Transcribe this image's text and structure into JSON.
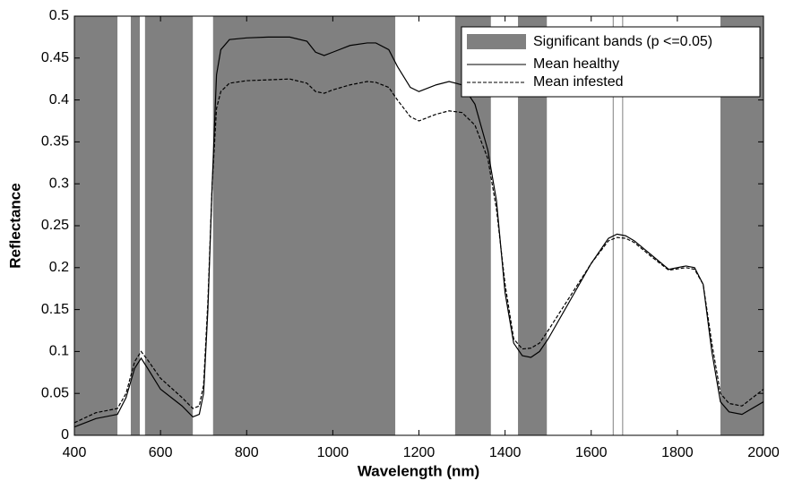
{
  "chart_data": {
    "type": "line",
    "xlabel": "Wavelength (nm)",
    "ylabel": "Reflectance",
    "xlim": [
      400,
      2000
    ],
    "ylim": [
      0,
      0.5
    ],
    "xticks": [
      400,
      600,
      800,
      1000,
      1200,
      1400,
      1600,
      1800,
      2000
    ],
    "yticks": [
      0,
      0.05,
      0.1,
      0.15,
      0.2,
      0.25,
      0.3,
      0.35,
      0.4,
      0.45,
      0.5
    ],
    "legend": "upper right",
    "bands": {
      "name": "Significant bands (p <=0.05)",
      "color": "#808080",
      "ranges": [
        {
          "start": 400,
          "end": 500
        },
        {
          "start": 531,
          "end": 552
        },
        {
          "start": 564,
          "end": 675
        },
        {
          "start": 722,
          "end": 1145
        },
        {
          "start": 1284,
          "end": 1367
        },
        {
          "start": 1430,
          "end": 1497
        },
        {
          "start": 1650,
          "end": 1652
        },
        {
          "start": 1672,
          "end": 1674
        },
        {
          "start": 1900,
          "end": 2000
        }
      ]
    },
    "x": [
      400,
      450,
      500,
      520,
      540,
      555,
      570,
      600,
      650,
      675,
      690,
      700,
      710,
      720,
      730,
      740,
      760,
      800,
      850,
      900,
      940,
      960,
      980,
      1000,
      1040,
      1080,
      1100,
      1130,
      1150,
      1180,
      1200,
      1240,
      1270,
      1300,
      1330,
      1360,
      1380,
      1400,
      1420,
      1440,
      1460,
      1480,
      1500,
      1550,
      1600,
      1640,
      1660,
      1680,
      1700,
      1740,
      1780,
      1820,
      1840,
      1860,
      1880,
      1900,
      1920,
      1950,
      2000
    ],
    "series": [
      {
        "name": "Mean healthy",
        "color": "#000000",
        "dash": "solid",
        "values": [
          0.01,
          0.02,
          0.025,
          0.045,
          0.08,
          0.092,
          0.08,
          0.055,
          0.035,
          0.022,
          0.025,
          0.05,
          0.15,
          0.3,
          0.43,
          0.46,
          0.472,
          0.474,
          0.475,
          0.475,
          0.47,
          0.457,
          0.453,
          0.457,
          0.465,
          0.468,
          0.468,
          0.46,
          0.44,
          0.415,
          0.41,
          0.418,
          0.422,
          0.418,
          0.395,
          0.34,
          0.28,
          0.17,
          0.11,
          0.095,
          0.093,
          0.1,
          0.115,
          0.16,
          0.205,
          0.235,
          0.24,
          0.238,
          0.232,
          0.215,
          0.198,
          0.202,
          0.2,
          0.18,
          0.1,
          0.04,
          0.028,
          0.025,
          0.04
        ]
      },
      {
        "name": "Mean infested",
        "color": "#000000",
        "dash": "dashed",
        "values": [
          0.015,
          0.027,
          0.032,
          0.05,
          0.088,
          0.1,
          0.09,
          0.068,
          0.045,
          0.032,
          0.035,
          0.06,
          0.16,
          0.3,
          0.39,
          0.41,
          0.42,
          0.423,
          0.424,
          0.425,
          0.42,
          0.41,
          0.408,
          0.412,
          0.418,
          0.422,
          0.421,
          0.415,
          0.4,
          0.38,
          0.375,
          0.383,
          0.387,
          0.385,
          0.37,
          0.33,
          0.27,
          0.18,
          0.115,
          0.103,
          0.104,
          0.11,
          0.125,
          0.165,
          0.205,
          0.232,
          0.236,
          0.235,
          0.23,
          0.213,
          0.197,
          0.2,
          0.198,
          0.18,
          0.11,
          0.05,
          0.038,
          0.035,
          0.055
        ]
      }
    ]
  }
}
